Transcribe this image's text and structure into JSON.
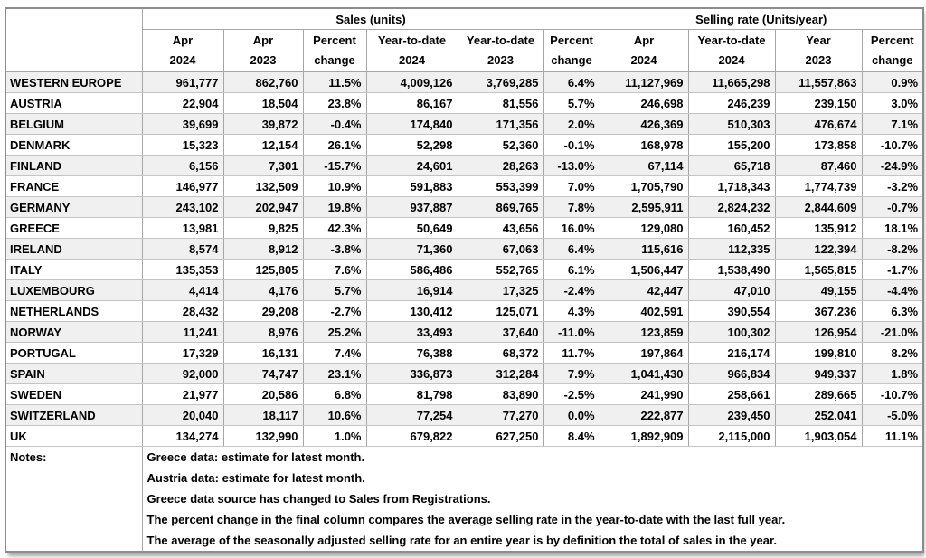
{
  "table": {
    "group_headers": [
      {
        "label": "Sales (units)"
      },
      {
        "label": "Selling rate (Units/year)"
      }
    ],
    "columns": [
      {
        "line1": "Apr",
        "line2": "2024"
      },
      {
        "line1": "Apr",
        "line2": "2023"
      },
      {
        "line1": "Percent",
        "line2": "change"
      },
      {
        "line1": "Year-to-date",
        "line2": "2024"
      },
      {
        "line1": "Year-to-date",
        "line2": "2023"
      },
      {
        "line1": "Percent",
        "line2": "change"
      },
      {
        "line1": "Apr",
        "line2": "2024"
      },
      {
        "line1": "Year-to-date",
        "line2": "2024"
      },
      {
        "line1": "Year",
        "line2": "2023"
      },
      {
        "line1": "Percent",
        "line2": "change"
      }
    ],
    "rows": [
      {
        "country": "WESTERN EUROPE",
        "values": [
          "961,777",
          "862,760",
          "11.5%",
          "4,009,126",
          "3,769,285",
          "6.4%",
          "11,127,969",
          "11,665,298",
          "11,557,863",
          "0.9%"
        ]
      },
      {
        "country": "AUSTRIA",
        "values": [
          "22,904",
          "18,504",
          "23.8%",
          "86,167",
          "81,556",
          "5.7%",
          "246,698",
          "246,239",
          "239,150",
          "3.0%"
        ]
      },
      {
        "country": "BELGIUM",
        "values": [
          "39,699",
          "39,872",
          "-0.4%",
          "174,840",
          "171,356",
          "2.0%",
          "426,369",
          "510,303",
          "476,674",
          "7.1%"
        ]
      },
      {
        "country": "DENMARK",
        "values": [
          "15,323",
          "12,154",
          "26.1%",
          "52,298",
          "52,360",
          "-0.1%",
          "168,978",
          "155,200",
          "173,858",
          "-10.7%"
        ]
      },
      {
        "country": "FINLAND",
        "values": [
          "6,156",
          "7,301",
          "-15.7%",
          "24,601",
          "28,263",
          "-13.0%",
          "67,114",
          "65,718",
          "87,460",
          "-24.9%"
        ]
      },
      {
        "country": "FRANCE",
        "values": [
          "146,977",
          "132,509",
          "10.9%",
          "591,883",
          "553,399",
          "7.0%",
          "1,705,790",
          "1,718,343",
          "1,774,739",
          "-3.2%"
        ]
      },
      {
        "country": "GERMANY",
        "values": [
          "243,102",
          "202,947",
          "19.8%",
          "937,887",
          "869,765",
          "7.8%",
          "2,595,911",
          "2,824,232",
          "2,844,609",
          "-0.7%"
        ]
      },
      {
        "country": "GREECE",
        "values": [
          "13,981",
          "9,825",
          "42.3%",
          "50,649",
          "43,656",
          "16.0%",
          "129,080",
          "160,452",
          "135,912",
          "18.1%"
        ]
      },
      {
        "country": "IRELAND",
        "values": [
          "8,574",
          "8,912",
          "-3.8%",
          "71,360",
          "67,063",
          "6.4%",
          "115,616",
          "112,335",
          "122,394",
          "-8.2%"
        ]
      },
      {
        "country": "ITALY",
        "values": [
          "135,353",
          "125,805",
          "7.6%",
          "586,486",
          "552,765",
          "6.1%",
          "1,506,447",
          "1,538,490",
          "1,565,815",
          "-1.7%"
        ]
      },
      {
        "country": "LUXEMBOURG",
        "values": [
          "4,414",
          "4,176",
          "5.7%",
          "16,914",
          "17,325",
          "-2.4%",
          "42,447",
          "47,010",
          "49,155",
          "-4.4%"
        ]
      },
      {
        "country": "NETHERLANDS",
        "values": [
          "28,432",
          "29,208",
          "-2.7%",
          "130,412",
          "125,071",
          "4.3%",
          "402,591",
          "390,554",
          "367,236",
          "6.3%"
        ]
      },
      {
        "country": "NORWAY",
        "values": [
          "11,241",
          "8,976",
          "25.2%",
          "33,493",
          "37,640",
          "-11.0%",
          "123,859",
          "100,302",
          "126,954",
          "-21.0%"
        ]
      },
      {
        "country": "PORTUGAL",
        "values": [
          "17,329",
          "16,131",
          "7.4%",
          "76,388",
          "68,372",
          "11.7%",
          "197,864",
          "216,174",
          "199,810",
          "8.2%"
        ]
      },
      {
        "country": "SPAIN",
        "values": [
          "92,000",
          "74,747",
          "23.1%",
          "336,873",
          "312,284",
          "7.9%",
          "1,041,430",
          "966,834",
          "949,337",
          "1.8%"
        ]
      },
      {
        "country": "SWEDEN",
        "values": [
          "21,977",
          "20,586",
          "6.8%",
          "81,798",
          "83,890",
          "-2.5%",
          "241,990",
          "258,661",
          "289,665",
          "-10.7%"
        ]
      },
      {
        "country": "SWITZERLAND",
        "values": [
          "20,040",
          "18,117",
          "10.6%",
          "77,254",
          "77,270",
          "0.0%",
          "222,877",
          "239,450",
          "252,041",
          "-5.0%"
        ]
      },
      {
        "country": "UK",
        "values": [
          "134,274",
          "132,990",
          "1.0%",
          "679,822",
          "627,250",
          "8.4%",
          "1,892,909",
          "2,115,000",
          "1,903,054",
          "11.1%"
        ]
      }
    ]
  },
  "notes": {
    "label": "Notes:",
    "lines": [
      "Greece data: estimate for latest month.",
      "Austria data: estimate for latest month.",
      "Greece data source has changed to Sales from Registrations.",
      "The percent change in the final column compares the average selling rate in the year-to-date with the last full year.",
      "The average of the seasonally adjusted selling rate for an entire year is by definition the total of sales in the year."
    ]
  }
}
